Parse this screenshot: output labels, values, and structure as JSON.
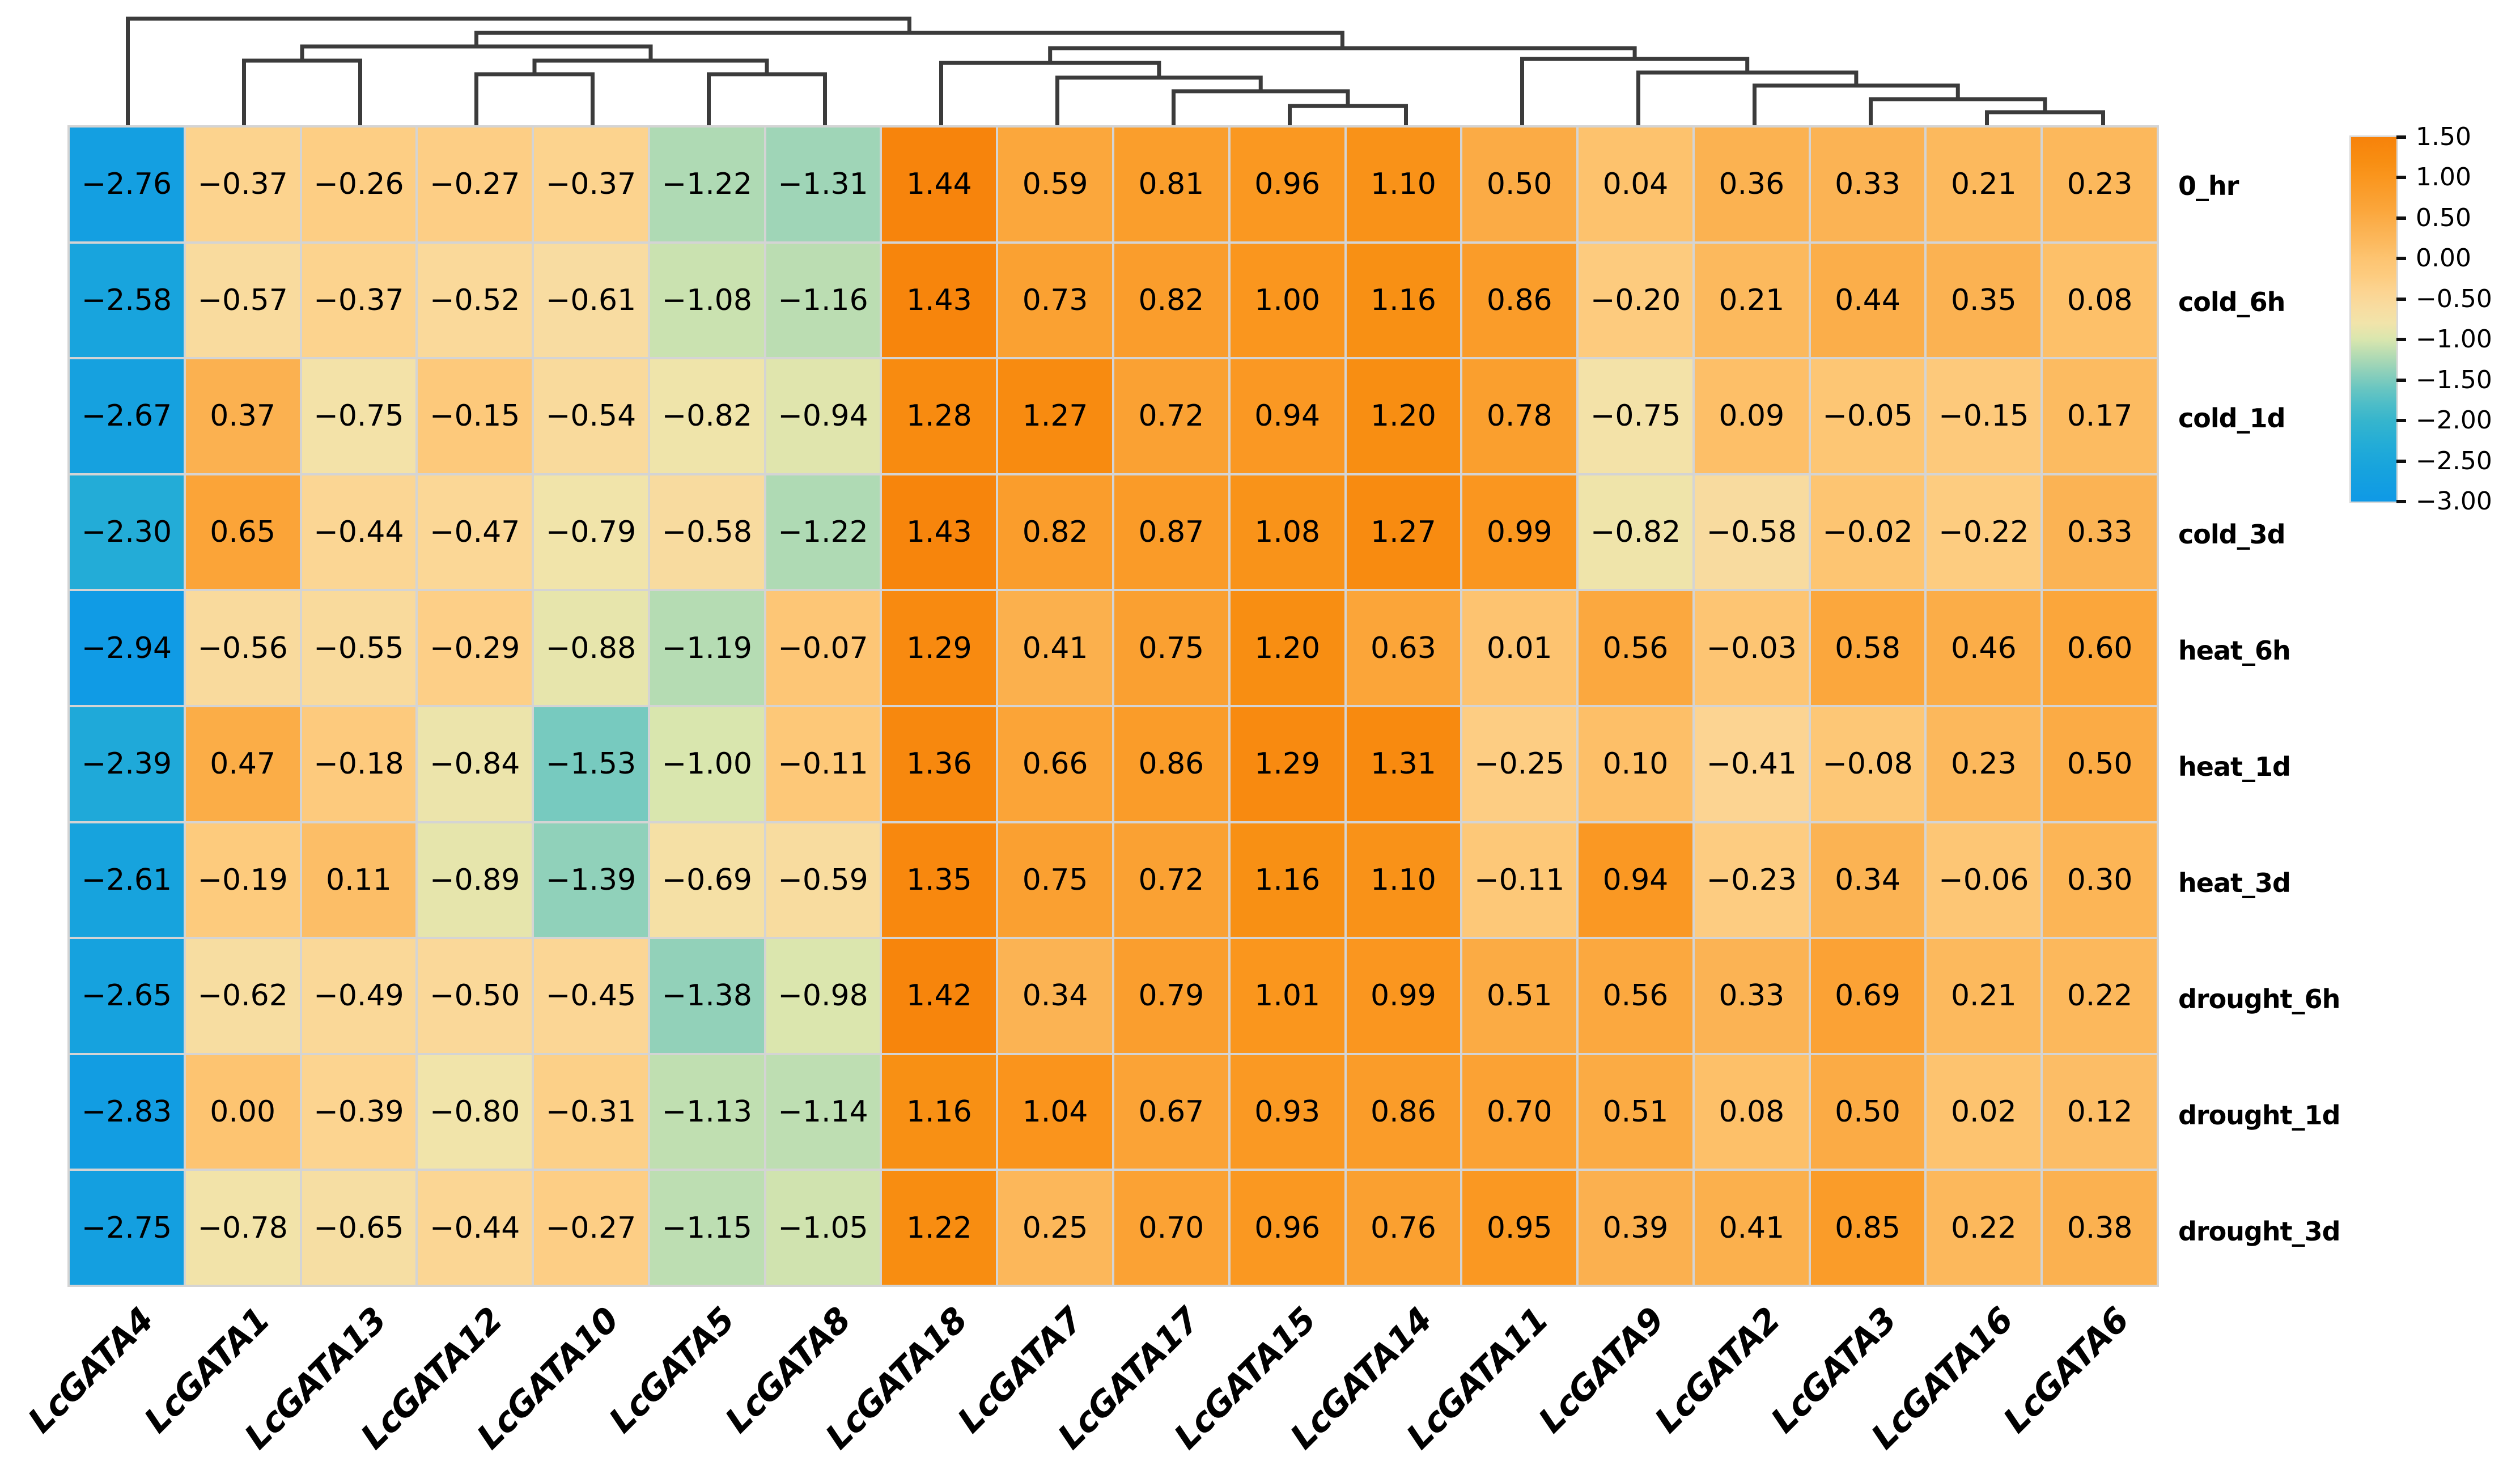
{
  "figure": {
    "background": "#ffffff",
    "grid_line_color": "#d4d4d4",
    "text_color": "#000000"
  },
  "chart_data": {
    "type": "heatmap",
    "title": "",
    "xlabel": "",
    "ylabel": "",
    "columns": [
      "LcGATA4",
      "LcGATA1",
      "LcGATA13",
      "LcGATA12",
      "LcGATA10",
      "LcGATA5",
      "LcGATA8",
      "LcGATA18",
      "LcGATA7",
      "LcGATA17",
      "LcGATA15",
      "LcGATA14",
      "LcGATA11",
      "LcGATA9",
      "LcGATA2",
      "LcGATA3",
      "LcGATA16",
      "LcGATA6"
    ],
    "rows": [
      "0_hr",
      "cold_6h",
      "cold_1d",
      "cold_3d",
      "heat_6h",
      "heat_1d",
      "heat_3d",
      "drought_6h",
      "drought_1d",
      "drought_3d"
    ],
    "values": [
      [
        -2.76,
        -0.37,
        -0.26,
        -0.27,
        -0.37,
        -1.22,
        -1.31,
        1.44,
        0.59,
        0.81,
        0.96,
        1.1,
        0.5,
        0.04,
        0.36,
        0.33,
        0.21,
        0.23
      ],
      [
        -2.58,
        -0.57,
        -0.37,
        -0.52,
        -0.61,
        -1.08,
        -1.16,
        1.43,
        0.73,
        0.82,
        1.0,
        1.16,
        0.86,
        -0.2,
        0.21,
        0.44,
        0.35,
        0.08
      ],
      [
        -2.67,
        0.37,
        -0.75,
        -0.15,
        -0.54,
        -0.82,
        -0.94,
        1.28,
        1.27,
        0.72,
        0.94,
        1.2,
        0.78,
        -0.75,
        0.09,
        -0.05,
        -0.15,
        0.17
      ],
      [
        -2.3,
        0.65,
        -0.44,
        -0.47,
        -0.79,
        -0.58,
        -1.22,
        1.43,
        0.82,
        0.87,
        1.08,
        1.27,
        0.99,
        -0.82,
        -0.58,
        -0.02,
        -0.22,
        0.33
      ],
      [
        -2.94,
        -0.56,
        -0.55,
        -0.29,
        -0.88,
        -1.19,
        -0.07,
        1.29,
        0.41,
        0.75,
        1.2,
        0.63,
        0.01,
        0.56,
        -0.03,
        0.58,
        0.46,
        0.6
      ],
      [
        -2.39,
        0.47,
        -0.18,
        -0.84,
        -1.53,
        -1.0,
        -0.11,
        1.36,
        0.66,
        0.86,
        1.29,
        1.31,
        -0.25,
        0.1,
        -0.41,
        -0.08,
        0.23,
        0.5
      ],
      [
        -2.61,
        -0.19,
        0.11,
        -0.89,
        -1.39,
        -0.69,
        -0.59,
        1.35,
        0.75,
        0.72,
        1.16,
        1.1,
        -0.11,
        0.94,
        -0.23,
        0.34,
        -0.06,
        0.3
      ],
      [
        -2.65,
        -0.62,
        -0.49,
        -0.5,
        -0.45,
        -1.38,
        -0.98,
        1.42,
        0.34,
        0.79,
        1.01,
        0.99,
        0.51,
        0.56,
        0.33,
        0.69,
        0.21,
        0.22
      ],
      [
        -2.83,
        0.0,
        -0.39,
        -0.8,
        -0.31,
        -1.13,
        -1.14,
        1.16,
        1.04,
        0.67,
        0.93,
        0.86,
        0.7,
        0.51,
        0.08,
        0.5,
        0.02,
        0.12
      ],
      [
        -2.75,
        -0.78,
        -0.65,
        -0.44,
        -0.27,
        -1.15,
        -1.05,
        1.22,
        0.25,
        0.7,
        0.96,
        0.76,
        0.95,
        0.39,
        0.41,
        0.85,
        0.22,
        0.38
      ]
    ],
    "colorbar": {
      "min": -3.0,
      "max": 1.5,
      "ticks": [
        1.5,
        1.0,
        0.5,
        0.0,
        -0.5,
        -1.0,
        -1.5,
        -2.0,
        -2.5,
        -3.0
      ],
      "tick_labels": [
        "1.50",
        "1.00",
        "0.50",
        "0.00",
        "−0.50",
        "−1.00",
        "−1.50",
        "−2.00",
        "−2.50",
        "−3.00"
      ],
      "position": "right"
    },
    "colormap_stops": [
      [
        1.5,
        "#f7820a"
      ],
      [
        1.2,
        "#f88e12"
      ],
      [
        1.0,
        "#fa961e"
      ],
      [
        0.8,
        "#fa9e2d"
      ],
      [
        0.6,
        "#fba63b"
      ],
      [
        0.4,
        "#fbb04e"
      ],
      [
        0.2,
        "#fcb95e"
      ],
      [
        0.0,
        "#fdc471"
      ],
      [
        -0.2,
        "#fdcb7e"
      ],
      [
        -0.4,
        "#fcd491"
      ],
      [
        -0.6,
        "#f8dca0"
      ],
      [
        -0.8,
        "#f1e4aa"
      ],
      [
        -1.0,
        "#d9e6ae"
      ],
      [
        -1.2,
        "#b3dbb3"
      ],
      [
        -1.4,
        "#8ed0ba"
      ],
      [
        -1.6,
        "#6ac6c1"
      ],
      [
        -1.8,
        "#4dbdc8"
      ],
      [
        -2.0,
        "#36b5cd"
      ],
      [
        -2.3,
        "#23acd7"
      ],
      [
        -2.6,
        "#17a3dd"
      ],
      [
        -3.0,
        "#0f99e6"
      ]
    ],
    "column_dendrogram": {
      "line_color": "#3b3b3b",
      "line_width": 7,
      "merges": [
        {
          "id": "m1",
          "a": "L1",
          "b": "L2",
          "h": 118
        },
        {
          "id": "m2",
          "a": "L3",
          "b": "L4",
          "h": 94
        },
        {
          "id": "m3",
          "a": "L5",
          "b": "L6",
          "h": 94
        },
        {
          "id": "m4",
          "a": "m2",
          "b": "m3",
          "h": 118
        },
        {
          "id": "m5",
          "a": "m1",
          "b": "m4",
          "h": 143
        },
        {
          "id": "rl4",
          "a": "L10",
          "b": "L11",
          "h": 38
        },
        {
          "id": "rl3",
          "a": "L9",
          "b": "rl4",
          "h": 64
        },
        {
          "id": "rl2",
          "a": "L8",
          "b": "rl3",
          "h": 88
        },
        {
          "id": "rl1",
          "a": "L7",
          "b": "rl2",
          "h": 114
        },
        {
          "id": "rr5",
          "a": "L16",
          "b": "L17",
          "h": 27
        },
        {
          "id": "rr4",
          "a": "L15",
          "b": "rr5",
          "h": 50
        },
        {
          "id": "rr3",
          "a": "L14",
          "b": "rr4",
          "h": 74
        },
        {
          "id": "rr2",
          "a": "L13",
          "b": "rr3",
          "h": 97
        },
        {
          "id": "rr1",
          "a": "L12",
          "b": "rr2",
          "h": 121
        },
        {
          "id": "R",
          "a": "rl1",
          "b": "rr1",
          "h": 140
        },
        {
          "id": "B",
          "a": "m5",
          "b": "R",
          "h": 167
        },
        {
          "id": "root",
          "a": "L0",
          "b": "B",
          "h": 192
        }
      ]
    },
    "legend": null,
    "grid": "cell-borders"
  }
}
